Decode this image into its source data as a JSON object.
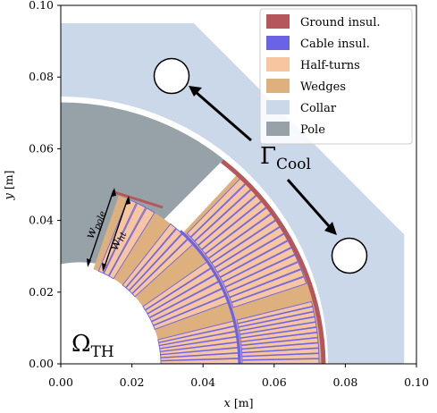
{
  "chart_data": {
    "type": "diagram",
    "xlabel_var": "x",
    "xlabel_unit": "[m]",
    "ylabel_var": "y",
    "ylabel_unit": "[m]",
    "xlim": [
      0.0,
      0.1
    ],
    "ylim": [
      0.0,
      0.1
    ],
    "xticks": [
      "0.00",
      "0.02",
      "0.04",
      "0.06",
      "0.08",
      "0.10"
    ],
    "yticks": [
      "0.00",
      "0.02",
      "0.04",
      "0.06",
      "0.08",
      "0.10"
    ],
    "legend": {
      "placement": "top-right",
      "entries": [
        {
          "label": "Ground insul.",
          "color": "#b5575a"
        },
        {
          "label": "Cable insul.",
          "color": "#6b63e6"
        },
        {
          "label": "Half-turns",
          "color": "#f7c59f"
        },
        {
          "label": "Wedges",
          "color": "#deb07d"
        },
        {
          "label": "Collar",
          "color": "#cbd8ea"
        },
        {
          "label": "Pole",
          "color": "#96a1a8"
        }
      ]
    },
    "annotations": {
      "gamma_main": "Γ",
      "gamma_sub": "Cool",
      "omega_main": "Ω",
      "omega_sub": "TH",
      "wpole_main": "w",
      "wpole_sub": "pole",
      "wht_main": "w",
      "wht_sub": "ht"
    },
    "coolant_holes": [
      {
        "x": 0.03,
        "y": 0.081,
        "r": 0.0049
      },
      {
        "x": 0.081,
        "y": 0.03,
        "r": 0.0049
      }
    ]
  }
}
